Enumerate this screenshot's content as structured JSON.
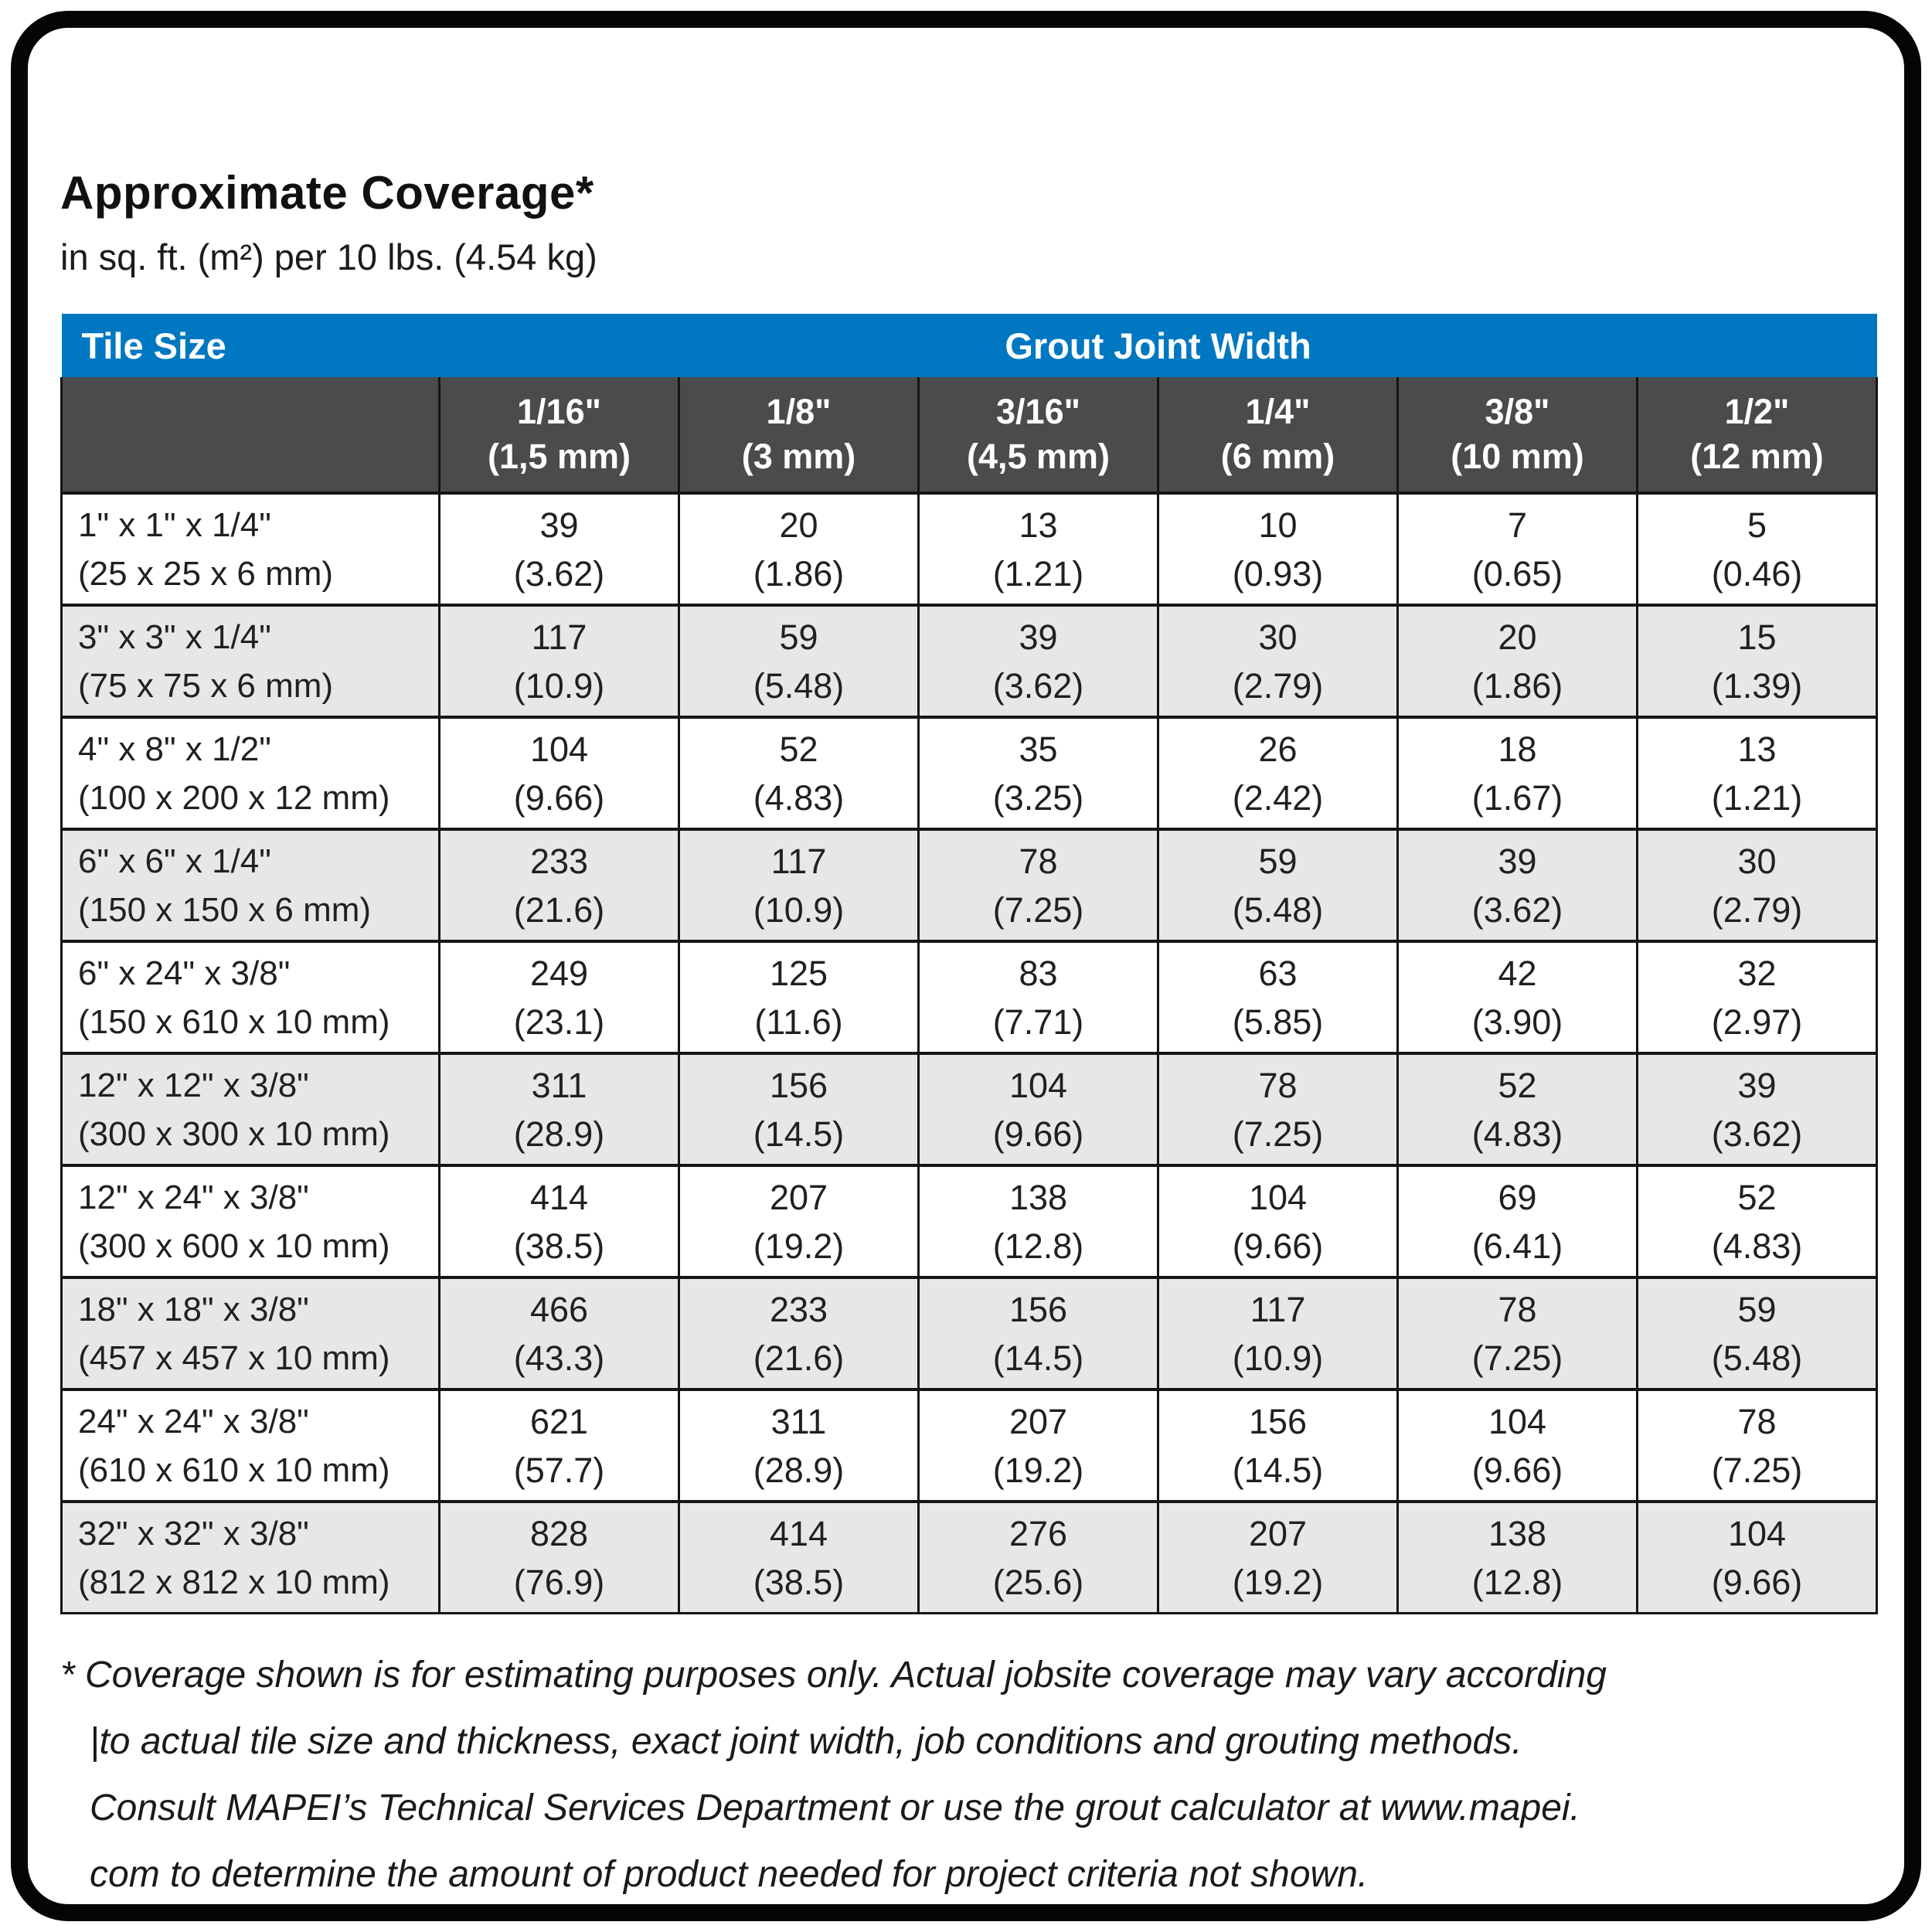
{
  "page": {
    "title": "Approximate Coverage*",
    "subtitle": "in sq. ft. (m²) per 10 lbs. (4.54 kg)"
  },
  "colors": {
    "header_blue": "#0078c1",
    "header_dark_gray": "#4b4b4d",
    "row_alt_gray": "#e7e7e9",
    "border_black": "#151515"
  },
  "table": {
    "corner_label": "Tile Size",
    "group_header": "Grout Joint Width",
    "columns": [
      {
        "size": "1/16\"",
        "metric": "(1,5 mm)"
      },
      {
        "size": "1/8\"",
        "metric": "(3 mm)"
      },
      {
        "size": "3/16\"",
        "metric": "(4,5 mm)"
      },
      {
        "size": "1/4\"",
        "metric": "(6 mm)"
      },
      {
        "size": "3/8\"",
        "metric": "(10 mm)"
      },
      {
        "size": "1/2\"",
        "metric": "(12 mm)"
      }
    ],
    "rows": [
      {
        "tile": "1\" x 1\" x 1/4\"",
        "tile_metric": "(25 x 25 x 6 mm)",
        "cells": [
          {
            "v": "39",
            "m": "(3.62)"
          },
          {
            "v": "20",
            "m": "(1.86)"
          },
          {
            "v": "13",
            "m": "(1.21)"
          },
          {
            "v": "10",
            "m": "(0.93)"
          },
          {
            "v": "7",
            "m": "(0.65)"
          },
          {
            "v": "5",
            "m": "(0.46)"
          }
        ]
      },
      {
        "tile": "3\" x 3\" x 1/4\"",
        "tile_metric": "(75 x 75 x 6 mm)",
        "cells": [
          {
            "v": "117",
            "m": "(10.9)"
          },
          {
            "v": "59",
            "m": "(5.48)"
          },
          {
            "v": "39",
            "m": "(3.62)"
          },
          {
            "v": "30",
            "m": "(2.79)"
          },
          {
            "v": "20",
            "m": "(1.86)"
          },
          {
            "v": "15",
            "m": "(1.39)"
          }
        ]
      },
      {
        "tile": "4\" x 8\" x 1/2\"",
        "tile_metric": "(100 x 200 x 12 mm)",
        "cells": [
          {
            "v": "104",
            "m": "(9.66)"
          },
          {
            "v": "52",
            "m": "(4.83)"
          },
          {
            "v": "35",
            "m": "(3.25)"
          },
          {
            "v": "26",
            "m": "(2.42)"
          },
          {
            "v": "18",
            "m": "(1.67)"
          },
          {
            "v": "13",
            "m": "(1.21)"
          }
        ]
      },
      {
        "tile": "6\" x 6\" x 1/4\"",
        "tile_metric": "(150 x 150 x 6 mm)",
        "cells": [
          {
            "v": "233",
            "m": "(21.6)"
          },
          {
            "v": "117",
            "m": "(10.9)"
          },
          {
            "v": "78",
            "m": "(7.25)"
          },
          {
            "v": "59",
            "m": "(5.48)"
          },
          {
            "v": "39",
            "m": "(3.62)"
          },
          {
            "v": "30",
            "m": "(2.79)"
          }
        ]
      },
      {
        "tile": "6\" x 24\" x 3/8\"",
        "tile_metric": "(150 x 610 x 10 mm)",
        "cells": [
          {
            "v": "249",
            "m": "(23.1)"
          },
          {
            "v": "125",
            "m": "(11.6)"
          },
          {
            "v": "83",
            "m": "(7.71)"
          },
          {
            "v": "63",
            "m": "(5.85)"
          },
          {
            "v": "42",
            "m": "(3.90)"
          },
          {
            "v": "32",
            "m": "(2.97)"
          }
        ]
      },
      {
        "tile": "12\" x 12\" x 3/8\"",
        "tile_metric": "(300 x 300 x 10 mm)",
        "cells": [
          {
            "v": "311",
            "m": "(28.9)"
          },
          {
            "v": "156",
            "m": "(14.5)"
          },
          {
            "v": "104",
            "m": "(9.66)"
          },
          {
            "v": "78",
            "m": "(7.25)"
          },
          {
            "v": "52",
            "m": "(4.83)"
          },
          {
            "v": "39",
            "m": "(3.62)"
          }
        ]
      },
      {
        "tile": "12\" x 24\" x 3/8\"",
        "tile_metric": "(300 x 600 x 10 mm)",
        "cells": [
          {
            "v": "414",
            "m": "(38.5)"
          },
          {
            "v": "207",
            "m": "(19.2)"
          },
          {
            "v": "138",
            "m": "(12.8)"
          },
          {
            "v": "104",
            "m": "(9.66)"
          },
          {
            "v": "69",
            "m": "(6.41)"
          },
          {
            "v": "52",
            "m": "(4.83)"
          }
        ]
      },
      {
        "tile": "18\" x 18\" x 3/8\"",
        "tile_metric": "(457 x 457 x 10 mm)",
        "cells": [
          {
            "v": "466",
            "m": "(43.3)"
          },
          {
            "v": "233",
            "m": "(21.6)"
          },
          {
            "v": "156",
            "m": "(14.5)"
          },
          {
            "v": "117",
            "m": "(10.9)"
          },
          {
            "v": "78",
            "m": "(7.25)"
          },
          {
            "v": "59",
            "m": "(5.48)"
          }
        ]
      },
      {
        "tile": "24\" x 24\" x 3/8\"",
        "tile_metric": "(610 x 610 x 10 mm)",
        "cells": [
          {
            "v": "621",
            "m": "(57.7)"
          },
          {
            "v": "311",
            "m": "(28.9)"
          },
          {
            "v": "207",
            "m": "(19.2)"
          },
          {
            "v": "156",
            "m": "(14.5)"
          },
          {
            "v": "104",
            "m": "(9.66)"
          },
          {
            "v": "78",
            "m": "(7.25)"
          }
        ]
      },
      {
        "tile": "32\" x 32\" x 3/8\"",
        "tile_metric": "(812 x 812 x 10 mm)",
        "cells": [
          {
            "v": "828",
            "m": "(76.9)"
          },
          {
            "v": "414",
            "m": "(38.5)"
          },
          {
            "v": "276",
            "m": "(25.6)"
          },
          {
            "v": "207",
            "m": "(19.2)"
          },
          {
            "v": "138",
            "m": "(12.8)"
          },
          {
            "v": "104",
            "m": "(9.66)"
          }
        ]
      }
    ]
  },
  "footnote": {
    "lines": [
      "* Coverage shown is for estimating purposes only. Actual jobsite coverage may vary according",
      "|to actual tile size and thickness, exact joint width, job conditions and grouting methods.",
      "Consult MAPEI’s Technical Services Department or use the grout calculator at www.mapei.",
      "com to determine the amount of product needed for project criteria not shown."
    ]
  }
}
